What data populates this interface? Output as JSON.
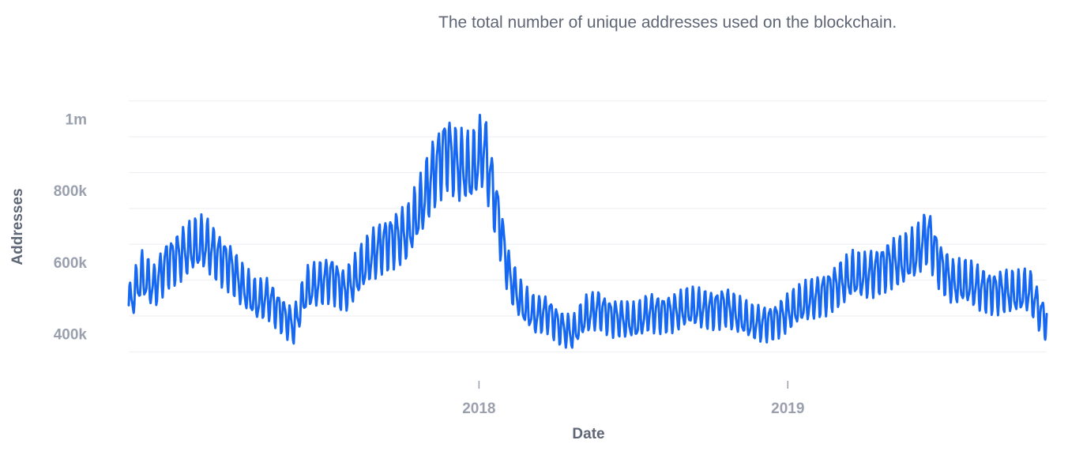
{
  "subtitle": "The total number of unique addresses used on the blockchain.",
  "chart_data": {
    "type": "line",
    "title": "",
    "subtitle": "The total number of unique addresses used on the blockchain.",
    "xlabel": "Date",
    "ylabel": "Addresses",
    "xlim": [
      "2016-11-13",
      "2019-11-03"
    ],
    "ylim": [
      300000,
      1100000
    ],
    "x_ticks": [
      "2018",
      "2019"
    ],
    "y_ticks": [
      "400k",
      "600k",
      "800k",
      "1m"
    ],
    "y_tick_values": [
      400000,
      600000,
      800000,
      1000000
    ],
    "grid": true,
    "legend": "none",
    "series": [
      {
        "color": "#1668f2",
        "points": [
          [
            "2016-11-13",
            480000
          ],
          [
            "2016-11-28",
            560000
          ],
          [
            "2016-12-13",
            530000
          ],
          [
            "2016-12-28",
            600000
          ],
          [
            "2017-01-12",
            620000
          ],
          [
            "2017-01-27",
            640000
          ],
          [
            "2017-02-11",
            650000
          ],
          [
            "2017-02-26",
            620000
          ],
          [
            "2017-03-13",
            590000
          ],
          [
            "2017-03-28",
            530000
          ],
          [
            "2017-04-12",
            490000
          ],
          [
            "2017-04-27",
            500000
          ],
          [
            "2017-05-12",
            460000
          ],
          [
            "2017-05-27",
            420000
          ],
          [
            "2017-06-11",
            520000
          ],
          [
            "2017-06-26",
            540000
          ],
          [
            "2017-07-11",
            560000
          ],
          [
            "2017-07-26",
            520000
          ],
          [
            "2017-08-10",
            560000
          ],
          [
            "2017-08-25",
            610000
          ],
          [
            "2017-09-09",
            650000
          ],
          [
            "2017-09-24",
            670000
          ],
          [
            "2017-10-09",
            680000
          ],
          [
            "2017-10-24",
            750000
          ],
          [
            "2017-11-08",
            850000
          ],
          [
            "2017-11-23",
            920000
          ],
          [
            "2017-12-08",
            870000
          ],
          [
            "2017-12-23",
            850000
          ],
          [
            "2018-01-07",
            920000
          ],
          [
            "2018-01-22",
            750000
          ],
          [
            "2018-02-06",
            560000
          ],
          [
            "2018-02-21",
            480000
          ],
          [
            "2018-03-08",
            450000
          ],
          [
            "2018-03-23",
            460000
          ],
          [
            "2018-04-07",
            420000
          ],
          [
            "2018-04-22",
            400000
          ],
          [
            "2018-05-07",
            450000
          ],
          [
            "2018-05-22",
            470000
          ],
          [
            "2018-06-06",
            450000
          ],
          [
            "2018-06-21",
            440000
          ],
          [
            "2018-07-06",
            430000
          ],
          [
            "2018-07-21",
            460000
          ],
          [
            "2018-08-05",
            460000
          ],
          [
            "2018-08-20",
            460000
          ],
          [
            "2018-09-04",
            470000
          ],
          [
            "2018-09-19",
            470000
          ],
          [
            "2018-10-04",
            470000
          ],
          [
            "2018-10-19",
            480000
          ],
          [
            "2018-11-03",
            450000
          ],
          [
            "2018-11-18",
            430000
          ],
          [
            "2018-12-03",
            430000
          ],
          [
            "2018-12-18",
            440000
          ],
          [
            "2019-01-02",
            460000
          ],
          [
            "2019-01-17",
            480000
          ],
          [
            "2019-02-01",
            500000
          ],
          [
            "2019-02-16",
            520000
          ],
          [
            "2019-03-03",
            540000
          ],
          [
            "2019-03-18",
            560000
          ],
          [
            "2019-04-02",
            560000
          ],
          [
            "2019-04-17",
            580000
          ],
          [
            "2019-05-02",
            600000
          ],
          [
            "2019-05-17",
            600000
          ],
          [
            "2019-06-01",
            620000
          ],
          [
            "2019-06-16",
            680000
          ],
          [
            "2019-07-01",
            590000
          ],
          [
            "2019-07-16",
            540000
          ],
          [
            "2019-07-31",
            540000
          ],
          [
            "2019-08-15",
            530000
          ],
          [
            "2019-08-30",
            520000
          ],
          [
            "2019-09-14",
            520000
          ],
          [
            "2019-09-29",
            510000
          ],
          [
            "2019-10-14",
            520000
          ],
          [
            "2019-10-29",
            450000
          ],
          [
            "2019-11-03",
            440000
          ]
        ]
      }
    ]
  }
}
